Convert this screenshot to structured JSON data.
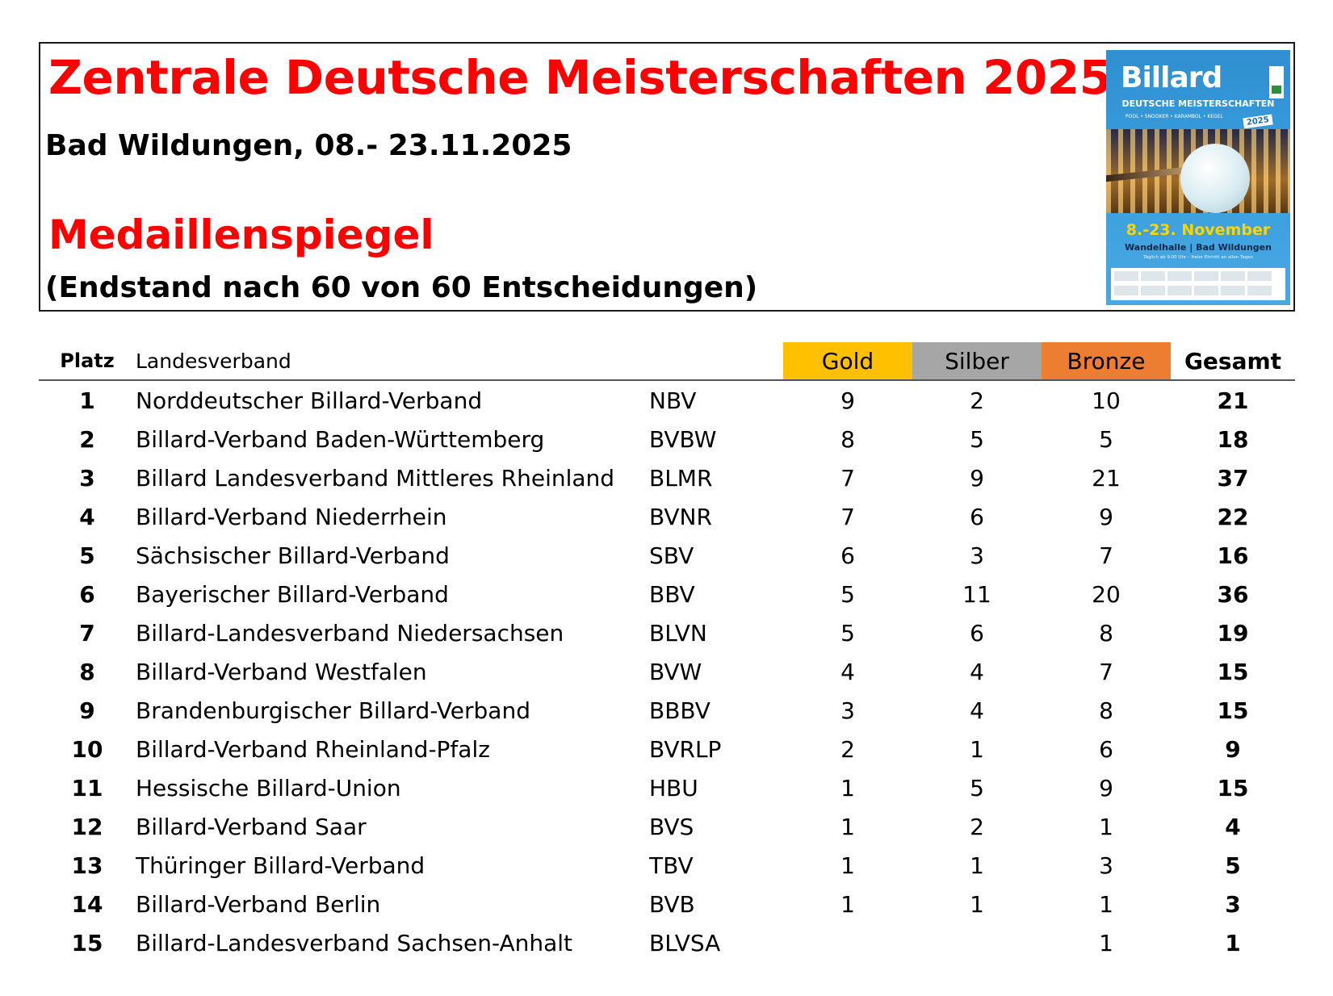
{
  "header": {
    "title": "Zentrale Deutsche Meisterschaften 2025",
    "subtitle": "Bad Wildungen, 08.- 23.11.2025",
    "section_title": "Medaillenspiegel",
    "status": "(Endstand nach 60 von 60 Entscheidungen)"
  },
  "poster": {
    "brand": "Billard",
    "subtitle": "DEUTSCHE MEISTERSCHAFTEN",
    "disciplines": "POOL • SNOOKER • KARAMBOL • KEGEL",
    "year": "2025",
    "date": "8.-23. November",
    "venue": "Wandelhalle | Bad Wildungen",
    "times": "Täglich ab 9:00 Uhr – freier Eintritt an allen Tagen",
    "colors": {
      "background": "#3aa0de",
      "date": "#ffd400"
    }
  },
  "table": {
    "headers": {
      "platz": "Platz",
      "landesverband": "Landesverband",
      "gold": "Gold",
      "silber": "Silber",
      "bronze": "Bronze",
      "gesamt": "Gesamt"
    },
    "colors": {
      "gold": "#ffc000",
      "silber": "#a6a6a6",
      "bronze": "#ed7d31"
    },
    "rows": [
      {
        "platz": "1",
        "name": "Norddeutscher Billard-Verband",
        "abbr": "NBV",
        "gold": "9",
        "silber": "2",
        "bronze": "10",
        "gesamt": "21"
      },
      {
        "platz": "2",
        "name": "Billard-Verband Baden-Württemberg",
        "abbr": "BVBW",
        "gold": "8",
        "silber": "5",
        "bronze": "5",
        "gesamt": "18"
      },
      {
        "platz": "3",
        "name": "Billard Landesverband Mittleres Rheinland",
        "abbr": "BLMR",
        "gold": "7",
        "silber": "9",
        "bronze": "21",
        "gesamt": "37"
      },
      {
        "platz": "4",
        "name": "Billard-Verband Niederrhein",
        "abbr": "BVNR",
        "gold": "7",
        "silber": "6",
        "bronze": "9",
        "gesamt": "22"
      },
      {
        "platz": "5",
        "name": "Sächsischer Billard-Verband",
        "abbr": "SBV",
        "gold": "6",
        "silber": "3",
        "bronze": "7",
        "gesamt": "16"
      },
      {
        "platz": "6",
        "name": "Bayerischer Billard-Verband",
        "abbr": "BBV",
        "gold": "5",
        "silber": "11",
        "bronze": "20",
        "gesamt": "36"
      },
      {
        "platz": "7",
        "name": "Billard-Landesverband Niedersachsen",
        "abbr": "BLVN",
        "gold": "5",
        "silber": "6",
        "bronze": "8",
        "gesamt": "19"
      },
      {
        "platz": "8",
        "name": "Billard-Verband Westfalen",
        "abbr": "BVW",
        "gold": "4",
        "silber": "4",
        "bronze": "7",
        "gesamt": "15"
      },
      {
        "platz": "9",
        "name": "Brandenburgischer Billard-Verband",
        "abbr": "BBBV",
        "gold": "3",
        "silber": "4",
        "bronze": "8",
        "gesamt": "15"
      },
      {
        "platz": "10",
        "name": "Billard-Verband Rheinland-Pfalz",
        "abbr": "BVRLP",
        "gold": "2",
        "silber": "1",
        "bronze": "6",
        "gesamt": "9"
      },
      {
        "platz": "11",
        "name": "Hessische Billard-Union",
        "abbr": "HBU",
        "gold": "1",
        "silber": "5",
        "bronze": "9",
        "gesamt": "15"
      },
      {
        "platz": "12",
        "name": "Billard-Verband Saar",
        "abbr": "BVS",
        "gold": "1",
        "silber": "2",
        "bronze": "1",
        "gesamt": "4"
      },
      {
        "platz": "13",
        "name": "Thüringer Billard-Verband",
        "abbr": "TBV",
        "gold": "1",
        "silber": "1",
        "bronze": "3",
        "gesamt": "5"
      },
      {
        "platz": "14",
        "name": "Billard-Verband Berlin",
        "abbr": "BVB",
        "gold": "1",
        "silber": "1",
        "bronze": "1",
        "gesamt": "3"
      },
      {
        "platz": "15",
        "name": "Billard-Landesverband Sachsen-Anhalt",
        "abbr": "BLVSA",
        "gold": "",
        "silber": "",
        "bronze": "1",
        "gesamt": "1"
      }
    ]
  }
}
